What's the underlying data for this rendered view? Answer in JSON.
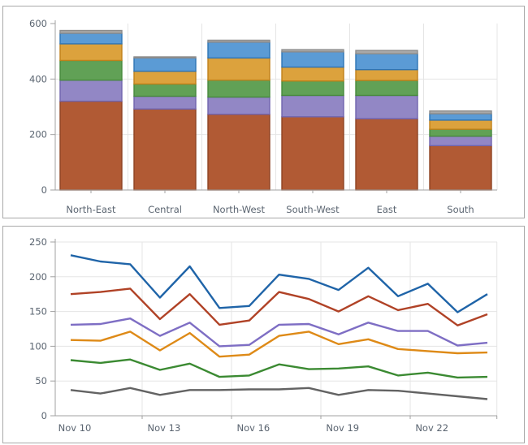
{
  "style": {
    "background": "#ffffff",
    "panel_border": "#a9a9a9",
    "grid_color": "#e5e5e5",
    "axis_color": "#a0a0a0",
    "label_color": "#5a6470"
  },
  "chart_data": [
    {
      "type": "bar",
      "stacked": true,
      "title": "",
      "xlabel": "",
      "ylabel": "",
      "grid": true,
      "legend": "none",
      "categories": [
        "North-East",
        "Central",
        "North-West",
        "South-West",
        "East",
        "South"
      ],
      "series": [
        {
          "name": "segment-rust",
          "color": "#b15a34",
          "border": "#8e4323",
          "values": [
            320,
            292,
            273,
            264,
            257,
            160
          ]
        },
        {
          "name": "segment-purple",
          "color": "#9287c5",
          "border": "#7064ae",
          "values": [
            76,
            46,
            62,
            77,
            84,
            34
          ]
        },
        {
          "name": "segment-green",
          "color": "#61a156",
          "border": "#478a3c",
          "values": [
            71,
            44,
            61,
            52,
            54,
            25
          ]
        },
        {
          "name": "segment-orange",
          "color": "#dca23d",
          "border": "#c08119",
          "values": [
            60,
            46,
            80,
            50,
            39,
            33
          ]
        },
        {
          "name": "segment-blue",
          "color": "#5b9bd5",
          "border": "#2e74b5",
          "values": [
            38,
            48,
            57,
            55,
            57,
            23
          ]
        },
        {
          "name": "segment-gray",
          "color": "#a8a8a8",
          "border": "#8c8c8c",
          "values": [
            10,
            4,
            7,
            8,
            12,
            10
          ]
        }
      ],
      "ylim": [
        0,
        600
      ],
      "yticks": [
        0,
        200,
        400,
        600
      ],
      "totals": [
        575,
        480,
        540,
        506,
        503,
        285
      ]
    },
    {
      "type": "line",
      "title": "",
      "xlabel": "",
      "ylabel": "",
      "grid": true,
      "legend": "none",
      "n_points": 15,
      "x_tick_labels": [
        "Nov 10",
        "Nov 13",
        "Nov 16",
        "Nov 19",
        "Nov 22"
      ],
      "x_tick_point_indices": [
        0,
        3,
        6,
        9,
        12
      ],
      "series": [
        {
          "name": "line-blue",
          "color": "#1f64a8",
          "values": [
            231,
            222,
            218,
            170,
            215,
            155,
            158,
            203,
            197,
            181,
            213,
            172,
            190,
            149,
            175
          ]
        },
        {
          "name": "line-red",
          "color": "#b04226",
          "values": [
            175,
            178,
            183,
            139,
            175,
            131,
            137,
            178,
            168,
            150,
            172,
            152,
            161,
            130,
            146
          ]
        },
        {
          "name": "line-purple",
          "color": "#7e6ec4",
          "values": [
            131,
            132,
            140,
            115,
            134,
            100,
            102,
            131,
            132,
            117,
            134,
            122,
            122,
            101,
            105
          ]
        },
        {
          "name": "line-orange",
          "color": "#de8a17",
          "values": [
            109,
            108,
            121,
            94,
            119,
            85,
            88,
            115,
            121,
            103,
            110,
            96,
            93,
            90,
            91
          ]
        },
        {
          "name": "line-green",
          "color": "#3b8a32",
          "values": [
            80,
            76,
            81,
            66,
            75,
            56,
            58,
            74,
            67,
            68,
            71,
            58,
            62,
            55,
            56
          ]
        },
        {
          "name": "line-gray",
          "color": "#636363",
          "values": [
            37,
            32,
            40,
            30,
            37,
            37,
            38,
            38,
            40,
            30,
            37,
            36,
            32,
            28,
            24
          ]
        }
      ],
      "ylim": [
        0,
        250
      ],
      "yticks": [
        0,
        50,
        100,
        150,
        200,
        250
      ]
    }
  ]
}
